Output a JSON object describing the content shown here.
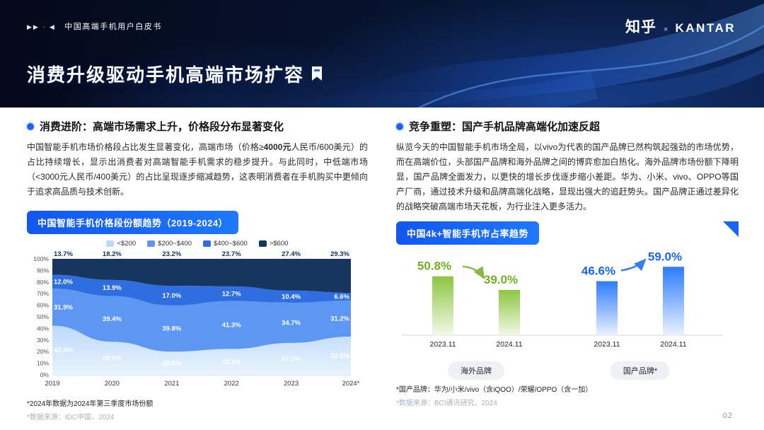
{
  "header": {
    "marks": "▶▶ · ◀",
    "tagline": "中国高端手机用户白皮书",
    "logo_zhihu": "知乎",
    "logo_sep": "×",
    "logo_kantar": "KANTAR",
    "title": "消费升级驱动手机高端市场扩容"
  },
  "left": {
    "heading": "消费进阶：高端市场需求上升，价格段分布显著变化",
    "para_before": "中国智能手机市场价格段占比发生显著变化，高端市场（价格≥",
    "para_bold": "4000元",
    "para_after": "人民币/600美元）的占比持续增长，显示出消费者对高端智能手机需求的稳步提升。与此同时，中低端市场（<3000元人民币/400美元）的占比呈现逐步缩减趋势，这表明消费者在手机购买中更倾向于追求高品质与技术创新。",
    "footnote_1": "*2024年数据为2024年第三季度市场份额",
    "footnote_2": "*数据来源：IDC中国，2024"
  },
  "right": {
    "heading": "竞争重塑：国产手机品牌高端化加速反超",
    "para": "纵览今天的中国智能手机市场全局，以vivo为代表的国产品牌已然构筑起强劲的市场优势，而在高端价位，头部国产品牌和海外品牌之间的博弈愈加白热化。海外品牌市场份额下降明显，国产品牌全面发力，以更快的增长步伐逐步缩小差距。华为、小米、vivo、OPPO等国产厂商，通过技术升级和品牌高端化战略，显现出强大的追赶势头。国产品牌正通过差异化的战略突破高端市场天花板，为行业注入更多活力。",
    "footnote_1": "*国产品牌：华为/小米/vivo（含iQOO）/荣耀/OPPO（含一加）",
    "footnote_2": "*数据来源：BCI通讯研究，2024"
  },
  "page_number": "02",
  "colors": {
    "accent_blue": "#1a66f4",
    "header_bg": "#071430",
    "green": "#6fb122"
  },
  "chart_data": [
    {
      "type": "area",
      "stacked": true,
      "title": "中国智能手机价格段份额趋势（2019-2024）",
      "x": [
        "2019",
        "2020",
        "2021",
        "2022",
        "2023",
        "2024*"
      ],
      "ylim": [
        0,
        100
      ],
      "ytick_step": 10,
      "grid": true,
      "legend_position": "top",
      "stack_order": "bottom_to_top",
      "series": [
        {
          "name": "<$200",
          "color": "#bcd9fa",
          "color2": "#eaf4fe",
          "values": [
            42.4,
            28.5,
            20.0,
            22.3,
            27.5,
            32.9
          ]
        },
        {
          "name": "$200~$400",
          "color": "#5e97f3",
          "values": [
            31.9,
            39.4,
            39.8,
            41.3,
            34.7,
            31.2
          ]
        },
        {
          "name": "$400~$600",
          "color": "#2e6ee0",
          "values": [
            12.0,
            13.9,
            17.0,
            12.7,
            10.4,
            6.6
          ]
        },
        {
          "name": ">$600",
          "color": "#16355f",
          "values": [
            13.7,
            18.2,
            23.2,
            23.7,
            27.4,
            29.3
          ]
        }
      ]
    },
    {
      "type": "bar",
      "title": "中国4k+智能手机市占率趋势",
      "value_suffix": "%",
      "groups": [
        {
          "label": "海外品牌",
          "trend": "down",
          "text_color": "#6fb122",
          "bar_top": "#8cc63f",
          "bar_bottom": "#f2f9e8",
          "bars": [
            {
              "x": "2023.11",
              "value": 50.8
            },
            {
              "x": "2024.11",
              "value": 39.0
            }
          ]
        },
        {
          "label": "国产品牌*",
          "trend": "up",
          "text_color": "#1766f2",
          "bar_top": "#2d7bff",
          "bar_bottom": "#eaf2ff",
          "bars": [
            {
              "x": "2023.11",
              "value": 46.6
            },
            {
              "x": "2024.11",
              "value": 59.0
            }
          ]
        }
      ]
    }
  ]
}
